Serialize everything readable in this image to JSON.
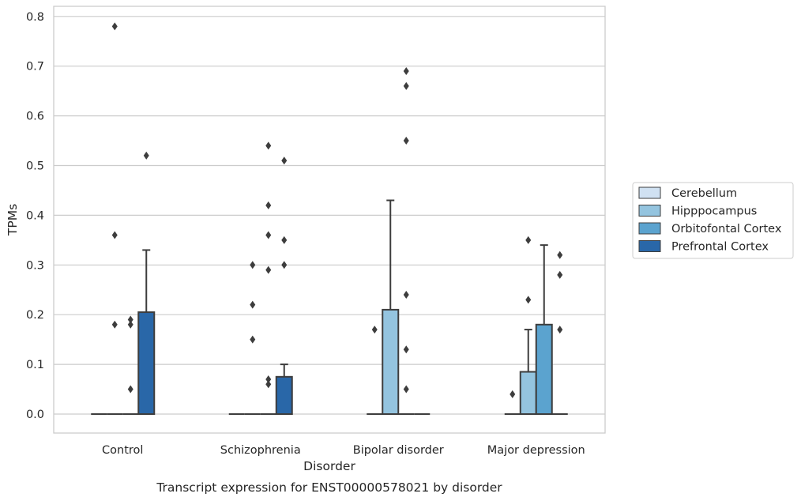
{
  "chart_data": {
    "type": "box",
    "caption": "Transcript expression for ENST00000578021 by disorder",
    "xlabel": "Disorder",
    "ylabel": "TPMs",
    "ylim": [
      -0.04,
      0.82
    ],
    "yticks": [
      0.0,
      0.1,
      0.2,
      0.3,
      0.4,
      0.5,
      0.6,
      0.7,
      0.8
    ],
    "ytick_labels": [
      "0.0",
      "0.1",
      "0.2",
      "0.3",
      "0.4",
      "0.5",
      "0.6",
      "0.7",
      "0.8"
    ],
    "grid": true,
    "legend_position": "right",
    "categories": [
      "Control",
      "Schizophrenia",
      "Bipolar disorder",
      "Major depression"
    ],
    "series": [
      {
        "name": "Cerebellum",
        "color": "#d0e1f2",
        "boxes": [
          {
            "q1": 0,
            "median": 0,
            "q3": 0,
            "whislo": 0,
            "whishi": 0,
            "fliers": []
          },
          {
            "q1": 0,
            "median": 0,
            "q3": 0,
            "whislo": 0,
            "whishi": 0,
            "fliers": []
          },
          {
            "q1": 0,
            "median": 0,
            "q3": 0,
            "whislo": 0,
            "whishi": 0,
            "fliers": [
              0.17
            ]
          },
          {
            "q1": 0,
            "median": 0,
            "q3": 0,
            "whislo": 0,
            "whishi": 0,
            "fliers": [
              0.04
            ]
          }
        ]
      },
      {
        "name": "Hipppocampus",
        "color": "#94c4df",
        "boxes": [
          {
            "q1": 0,
            "median": 0,
            "q3": 0,
            "whislo": 0,
            "whishi": 0,
            "fliers": [
              0.18,
              0.36,
              0.78
            ]
          },
          {
            "q1": 0,
            "median": 0,
            "q3": 0,
            "whislo": 0,
            "whishi": 0,
            "fliers": [
              0.15,
              0.22,
              0.3
            ]
          },
          {
            "q1": 0,
            "median": 0,
            "q3": 0.21,
            "whislo": 0,
            "whishi": 0.43,
            "fliers": []
          },
          {
            "q1": 0,
            "median": 0,
            "q3": 0.085,
            "whislo": 0,
            "whishi": 0.17,
            "fliers": [
              0.23,
              0.35
            ]
          }
        ]
      },
      {
        "name": "Orbitofontal Cortex",
        "color": "#5ba3cf",
        "boxes": [
          {
            "q1": 0,
            "median": 0,
            "q3": 0,
            "whislo": 0,
            "whishi": 0,
            "fliers": [
              0.05,
              0.18,
              0.19
            ]
          },
          {
            "q1": 0,
            "median": 0,
            "q3": 0,
            "whislo": 0,
            "whishi": 0,
            "fliers": [
              0.06,
              0.07,
              0.29,
              0.36,
              0.42,
              0.54
            ]
          },
          {
            "q1": 0,
            "median": 0,
            "q3": 0,
            "whislo": 0,
            "whishi": 0,
            "fliers": [
              0.05,
              0.13,
              0.24,
              0.55,
              0.66,
              0.69
            ]
          },
          {
            "q1": 0,
            "median": 0,
            "q3": 0.18,
            "whislo": 0,
            "whishi": 0.34,
            "fliers": []
          }
        ]
      },
      {
        "name": "Prefrontal Cortex",
        "color": "#2967a8",
        "boxes": [
          {
            "q1": 0,
            "median": 0,
            "q3": 0.205,
            "whislo": 0,
            "whishi": 0.33,
            "fliers": [
              0.52
            ]
          },
          {
            "q1": 0,
            "median": 0,
            "q3": 0.075,
            "whislo": 0,
            "whishi": 0.1,
            "fliers": [
              0.3,
              0.35,
              0.51
            ]
          },
          {
            "q1": 0,
            "median": 0,
            "q3": 0,
            "whislo": 0,
            "whishi": 0,
            "fliers": []
          },
          {
            "q1": 0,
            "median": 0,
            "q3": 0,
            "whislo": 0,
            "whishi": 0,
            "fliers": [
              0.17,
              0.28,
              0.32
            ]
          }
        ]
      }
    ]
  }
}
